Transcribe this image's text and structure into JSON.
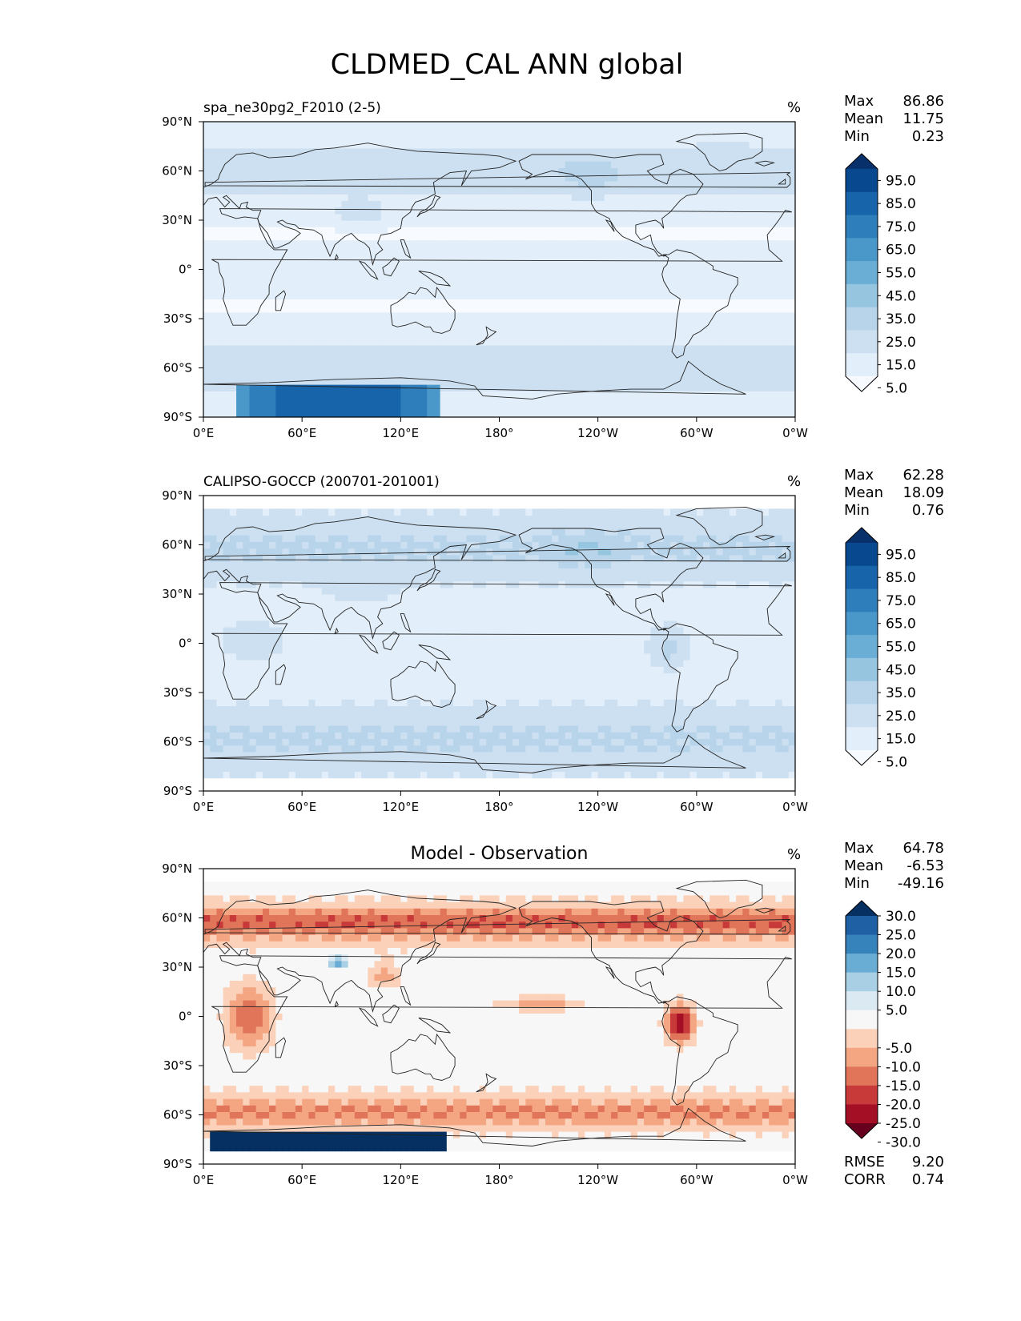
{
  "figure": {
    "title": "CLDMED_CAL ANN global"
  },
  "colors": {
    "seq": [
      "#f7fbff",
      "#e2eef9",
      "#cde0f1",
      "#b7d4ea",
      "#95c5df",
      "#6aaed6",
      "#4a98c9",
      "#2e7ebc",
      "#1764ab",
      "#08488e",
      "#08306b"
    ],
    "div": [
      "#67001f",
      "#a50f26",
      "#c83a39",
      "#e0755a",
      "#f4a582",
      "#fbd1ba",
      "#f7f7f7",
      "#dbeaf2",
      "#a9cfe5",
      "#6aadd4",
      "#3683bb",
      "#1f5fa3",
      "#053061"
    ],
    "coast": "#222222"
  },
  "chart_data": [
    {
      "type": "heatmap",
      "left_title": "spa_ne30pg2_F2010 (2-5)",
      "center_title": "",
      "units": "%",
      "stats": {
        "labels": [
          "Max",
          "Mean",
          "Min"
        ],
        "values": [
          "86.86",
          "11.75",
          "0.23"
        ]
      },
      "extra_stats": null,
      "colorbar": {
        "kind": "sequential",
        "levels": [
          "95.0",
          "85.0",
          "75.0",
          "65.0",
          "55.0",
          "45.0",
          "35.0",
          "25.0",
          "15.0",
          "5.0"
        ]
      },
      "x_ticks": [
        "0°E",
        "60°E",
        "120°E",
        "180°",
        "120°W",
        "60°W",
        "0°W"
      ],
      "y_ticks": [
        "90°N",
        "60°N",
        "30°N",
        "0°",
        "30°S",
        "60°S",
        "90°S"
      ],
      "xlim": [
        0,
        360
      ],
      "ylim": [
        -90,
        90
      ],
      "lat_coverage": [
        -90,
        90
      ],
      "field": "model"
    },
    {
      "type": "heatmap",
      "left_title": "CALIPSO-GOCCP (200701-201001)",
      "center_title": "",
      "units": "%",
      "stats": {
        "labels": [
          "Max",
          "Mean",
          "Min"
        ],
        "values": [
          "62.28",
          "18.09",
          "0.76"
        ]
      },
      "extra_stats": null,
      "colorbar": {
        "kind": "sequential",
        "levels": [
          "95.0",
          "85.0",
          "75.0",
          "65.0",
          "55.0",
          "45.0",
          "35.0",
          "25.0",
          "15.0",
          "5.0"
        ]
      },
      "x_ticks": [
        "0°E",
        "60°E",
        "120°E",
        "180°",
        "120°W",
        "60°W",
        "0°W"
      ],
      "y_ticks": [
        "90°N",
        "60°N",
        "30°N",
        "0°",
        "30°S",
        "60°S",
        "90°S"
      ],
      "xlim": [
        0,
        360
      ],
      "ylim": [
        -90,
        90
      ],
      "lat_coverage": [
        -82,
        82
      ],
      "field": "obs"
    },
    {
      "type": "heatmap",
      "left_title": "",
      "center_title": "Model - Observation",
      "units": "%",
      "stats": {
        "labels": [
          "Max",
          "Mean",
          "Min"
        ],
        "values": [
          "64.78",
          "-6.53",
          "-49.16"
        ]
      },
      "extra_stats": {
        "labels": [
          "RMSE",
          "CORR"
        ],
        "values": [
          "9.20",
          "0.74"
        ]
      },
      "colorbar": {
        "kind": "diverging",
        "levels": [
          "30.0",
          "25.0",
          "20.0",
          "15.0",
          "10.0",
          "5.0",
          "-5.0",
          "-10.0",
          "-15.0",
          "-20.0",
          "-25.0",
          "-30.0"
        ]
      },
      "x_ticks": [
        "0°E",
        "60°E",
        "120°E",
        "180°",
        "120°W",
        "60°W",
        "0°W"
      ],
      "y_ticks": [
        "90°N",
        "60°N",
        "30°N",
        "0°",
        "30°S",
        "60°S",
        "90°S"
      ],
      "xlim": [
        0,
        360
      ],
      "ylim": [
        -90,
        90
      ],
      "lat_coverage": [
        -82,
        82
      ],
      "field": "diff"
    }
  ]
}
